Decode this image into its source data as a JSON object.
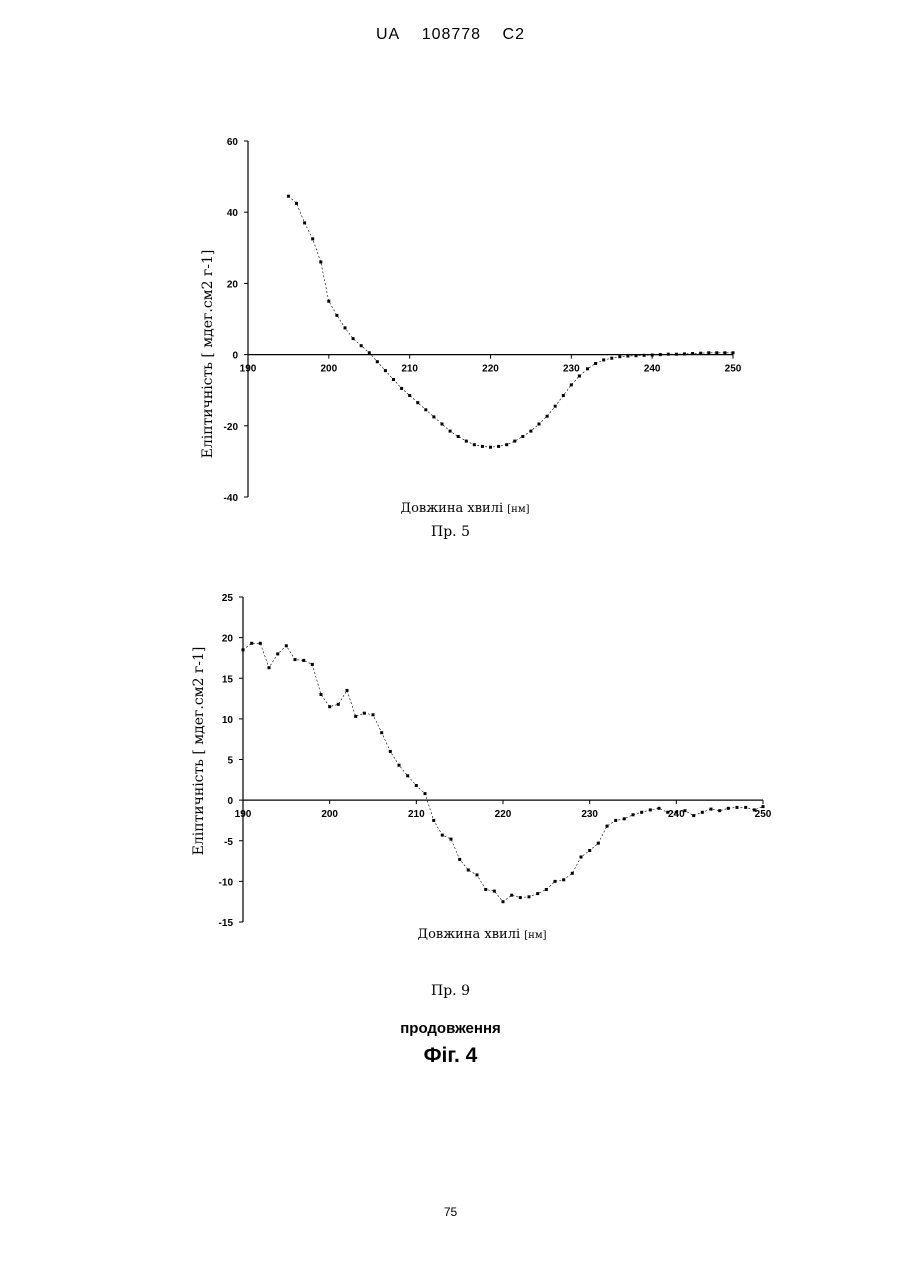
{
  "header": {
    "country": "UA",
    "number": "108778",
    "kind": "C2"
  },
  "chart_data": [
    {
      "type": "line",
      "xlabel": "Довжина хвилі",
      "xunit": "[нм]",
      "ylabel": "Еліптичність [ мдег.см2 г-1]",
      "xlim": [
        190,
        250
      ],
      "ylim": [
        -40,
        60
      ],
      "xticks": [
        190,
        200,
        210,
        220,
        230,
        240,
        250
      ],
      "yticks": [
        -40,
        -20,
        0,
        20,
        40,
        60
      ],
      "caption": "Пр. 5",
      "x": [
        195,
        196,
        197,
        198,
        199,
        200,
        201,
        202,
        203,
        204,
        205,
        206,
        207,
        208,
        209,
        210,
        211,
        212,
        213,
        214,
        215,
        216,
        217,
        218,
        219,
        220,
        221,
        222,
        223,
        224,
        225,
        226,
        227,
        228,
        229,
        230,
        231,
        232,
        233,
        234,
        235,
        236,
        237,
        238,
        239,
        240,
        241,
        242,
        243,
        244,
        245,
        246,
        247,
        248,
        249,
        250
      ],
      "y": [
        44.5,
        42.5,
        37,
        32.5,
        26,
        15,
        11,
        7.5,
        4.5,
        2.5,
        0.5,
        -2,
        -4.5,
        -7,
        -9.5,
        -11.5,
        -13.5,
        -15.5,
        -17.5,
        -19.5,
        -21.5,
        -23,
        -24.3,
        -25.3,
        -25.8,
        -26,
        -25.8,
        -25.3,
        -24.3,
        -23,
        -21.5,
        -19.5,
        -17.3,
        -14.5,
        -11.5,
        -8.5,
        -6,
        -4,
        -2.5,
        -1.5,
        -1,
        -0.6,
        -0.4,
        -0.3,
        -0.2,
        -0.1,
        0,
        0.1,
        0.1,
        0.2,
        0.3,
        0.4,
        0.5,
        0.5,
        0.5,
        0.5
      ]
    },
    {
      "type": "line",
      "xlabel": "Довжина хвилі",
      "xunit": "[нм]",
      "ylabel": "Еліптичність [ мдег.см2 г-1]",
      "xlim": [
        190,
        250
      ],
      "ylim": [
        -15,
        25
      ],
      "xticks": [
        190,
        200,
        210,
        220,
        230,
        240,
        250
      ],
      "yticks": [
        -15,
        -10,
        -5,
        0,
        5,
        10,
        15,
        20,
        25
      ],
      "caption": "Пр. 9",
      "x": [
        190,
        191,
        192,
        193,
        194,
        195,
        196,
        197,
        198,
        199,
        200,
        201,
        202,
        203,
        204,
        205,
        206,
        207,
        208,
        209,
        210,
        211,
        212,
        213,
        214,
        215,
        216,
        217,
        218,
        219,
        220,
        221,
        222,
        223,
        224,
        225,
        226,
        227,
        228,
        229,
        230,
        231,
        232,
        233,
        234,
        235,
        236,
        237,
        238,
        239,
        240,
        241,
        242,
        243,
        244,
        245,
        246,
        247,
        248,
        249,
        250
      ],
      "y": [
        18.5,
        19.3,
        19.3,
        16.3,
        18,
        19,
        17.3,
        17.2,
        16.7,
        13,
        11.5,
        11.8,
        13.5,
        10.3,
        10.7,
        10.5,
        8.3,
        6,
        4.3,
        3,
        1.8,
        0.8,
        -2.5,
        -4.3,
        -4.8,
        -7.3,
        -8.6,
        -9.2,
        -11,
        -11.2,
        -12.5,
        -11.7,
        -12,
        -11.9,
        -11.5,
        -11,
        -10,
        -9.8,
        -9,
        -7,
        -6.2,
        -5.3,
        -3.2,
        -2.5,
        -2.3,
        -1.8,
        -1.5,
        -1.2,
        -1,
        -1.5,
        -1.5,
        -1.3,
        -1.9,
        -1.5,
        -1.1,
        -1.3,
        -1,
        -0.9,
        -0.9,
        -1.2,
        -0.8
      ]
    }
  ],
  "continuation": "продовження",
  "figure": "Фіг. 4",
  "page_number": "75"
}
